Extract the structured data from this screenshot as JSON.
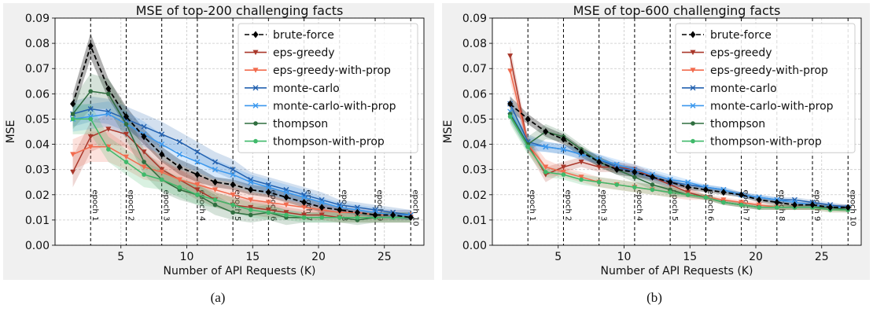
{
  "figure": {
    "captions": [
      "(a)",
      "(b)"
    ]
  },
  "colors": {
    "brute-force": "#000000",
    "eps-greedy": "#a9372a",
    "eps-greedy-with-prop": "#f26b4e",
    "monte-carlo": "#2462b0",
    "monte-carlo-with-prop": "#3b98ee",
    "thompson": "#2f6e3f",
    "thompson-with-prop": "#3fb96a",
    "panel_bg": "#f0f0f0"
  },
  "chart_data": [
    {
      "type": "line",
      "title": "MSE of top-200 challenging facts",
      "xlabel": "Number of API Requests (K)",
      "ylabel": "MSE",
      "xlim": [
        0,
        28
      ],
      "ylim": [
        0,
        0.09
      ],
      "xticks": [
        5,
        10,
        15,
        20,
        25
      ],
      "yticks": [
        0.0,
        0.01,
        0.02,
        0.03,
        0.04,
        0.05,
        0.06,
        0.07,
        0.08,
        0.09
      ],
      "grid": true,
      "legend_position": "top-right",
      "epochs": {
        "x": [
          2.7,
          5.4,
          8.1,
          10.8,
          13.5,
          16.2,
          18.9,
          21.6,
          24.3,
          27.0
        ],
        "labels": [
          "epoch 1",
          "epoch 2",
          "epoch 3",
          "epoch 4",
          "epoch 5",
          "epoch 6",
          "epoch 7",
          "epoch 8",
          "epoch 9",
          "epoch 10"
        ]
      },
      "x": [
        1.35,
        2.7,
        4.05,
        5.4,
        6.75,
        8.1,
        9.45,
        10.8,
        12.15,
        13.5,
        14.85,
        16.2,
        17.55,
        18.9,
        20.25,
        21.6,
        22.95,
        24.3,
        25.65,
        27.0
      ],
      "series": [
        {
          "name": "brute-force",
          "marker": "diamond",
          "dash": true,
          "values": [
            0.056,
            0.079,
            0.062,
            0.051,
            0.043,
            0.036,
            0.031,
            0.028,
            0.025,
            0.024,
            0.022,
            0.021,
            0.019,
            0.017,
            0.015,
            0.014,
            0.013,
            0.012,
            0.012,
            0.011
          ],
          "band": [
            0.004,
            0.005,
            0.004,
            0.004,
            0.003,
            0.003,
            0.003,
            0.003,
            0.002,
            0.002,
            0.002,
            0.002,
            0.002,
            0.002,
            0.002,
            0.001,
            0.001,
            0.001,
            0.001,
            0.001
          ]
        },
        {
          "name": "eps-greedy",
          "marker": "tri_down",
          "values": [
            0.029,
            0.043,
            0.046,
            0.044,
            0.037,
            0.03,
            0.026,
            0.022,
            0.018,
            0.016,
            0.015,
            0.014,
            0.013,
            0.012,
            0.012,
            0.011,
            0.011,
            0.011,
            0.011,
            0.011
          ],
          "band": [
            0.006,
            0.006,
            0.006,
            0.005,
            0.005,
            0.004,
            0.004,
            0.004,
            0.003,
            0.003,
            0.003,
            0.003,
            0.002,
            0.002,
            0.002,
            0.002,
            0.002,
            0.002,
            0.002,
            0.002
          ]
        },
        {
          "name": "eps-greedy-with-prop",
          "marker": "tri_down",
          "values": [
            0.036,
            0.039,
            0.039,
            0.035,
            0.031,
            0.029,
            0.026,
            0.024,
            0.022,
            0.02,
            0.018,
            0.017,
            0.016,
            0.015,
            0.014,
            0.013,
            0.013,
            0.012,
            0.012,
            0.012
          ],
          "band": [
            0.006,
            0.006,
            0.006,
            0.005,
            0.005,
            0.004,
            0.004,
            0.004,
            0.003,
            0.003,
            0.003,
            0.003,
            0.002,
            0.002,
            0.002,
            0.002,
            0.002,
            0.002,
            0.002,
            0.002
          ]
        },
        {
          "name": "monte-carlo",
          "marker": "x",
          "values": [
            0.052,
            0.054,
            0.053,
            0.05,
            0.047,
            0.044,
            0.041,
            0.037,
            0.033,
            0.03,
            0.026,
            0.024,
            0.022,
            0.02,
            0.018,
            0.016,
            0.015,
            0.014,
            0.013,
            0.012
          ],
          "band": [
            0.005,
            0.005,
            0.005,
            0.005,
            0.005,
            0.005,
            0.004,
            0.004,
            0.004,
            0.004,
            0.003,
            0.003,
            0.003,
            0.003,
            0.003,
            0.002,
            0.002,
            0.002,
            0.002,
            0.002
          ]
        },
        {
          "name": "monte-carlo-with-prop",
          "marker": "x",
          "values": [
            0.05,
            0.051,
            0.052,
            0.048,
            0.044,
            0.04,
            0.036,
            0.033,
            0.03,
            0.028,
            0.025,
            0.023,
            0.021,
            0.019,
            0.017,
            0.015,
            0.014,
            0.013,
            0.012,
            0.012
          ],
          "band": [
            0.005,
            0.005,
            0.005,
            0.005,
            0.005,
            0.004,
            0.004,
            0.004,
            0.004,
            0.003,
            0.003,
            0.003,
            0.003,
            0.003,
            0.002,
            0.002,
            0.002,
            0.002,
            0.002,
            0.002
          ]
        },
        {
          "name": "thompson",
          "marker": "circle",
          "values": [
            0.052,
            0.061,
            0.06,
            0.048,
            0.033,
            0.026,
            0.022,
            0.02,
            0.016,
            0.013,
            0.012,
            0.013,
            0.011,
            0.011,
            0.011,
            0.011,
            0.01,
            0.011,
            0.011,
            0.011
          ],
          "band": [
            0.006,
            0.007,
            0.006,
            0.006,
            0.005,
            0.005,
            0.004,
            0.004,
            0.004,
            0.003,
            0.003,
            0.003,
            0.003,
            0.002,
            0.002,
            0.002,
            0.002,
            0.002,
            0.002,
            0.002
          ]
        },
        {
          "name": "thompson-with-prop",
          "marker": "circle",
          "values": [
            0.05,
            0.05,
            0.038,
            0.033,
            0.028,
            0.026,
            0.023,
            0.02,
            0.018,
            0.016,
            0.014,
            0.013,
            0.012,
            0.011,
            0.011,
            0.011,
            0.011,
            0.011,
            0.011,
            0.011
          ],
          "band": [
            0.006,
            0.006,
            0.005,
            0.005,
            0.005,
            0.004,
            0.004,
            0.004,
            0.003,
            0.003,
            0.003,
            0.003,
            0.002,
            0.002,
            0.002,
            0.002,
            0.002,
            0.002,
            0.002,
            0.002
          ]
        }
      ]
    },
    {
      "type": "line",
      "title": "MSE of top-600 challenging facts",
      "xlabel": "Number of API Requests (K)",
      "ylabel": "MSE",
      "xlim": [
        0,
        28
      ],
      "ylim": [
        0,
        0.09
      ],
      "xticks": [
        5,
        10,
        15,
        20,
        25
      ],
      "yticks": [
        0.0,
        0.01,
        0.02,
        0.03,
        0.04,
        0.05,
        0.06,
        0.07,
        0.08,
        0.09
      ],
      "grid": true,
      "legend_position": "top-right",
      "epochs": {
        "x": [
          2.7,
          5.4,
          8.1,
          10.8,
          13.5,
          16.2,
          18.9,
          21.6,
          24.3,
          27.0
        ],
        "labels": [
          "epoch 1",
          "epoch 2",
          "epoch 3",
          "epoch 4",
          "epoch 5",
          "epoch 6",
          "epoch 7",
          "epoch 8",
          "epoch 9",
          "epoch 10"
        ]
      },
      "x": [
        1.35,
        2.7,
        4.05,
        5.4,
        6.75,
        8.1,
        9.45,
        10.8,
        12.15,
        13.5,
        14.85,
        16.2,
        17.55,
        18.9,
        20.25,
        21.6,
        22.95,
        24.3,
        25.65,
        27.0
      ],
      "series": [
        {
          "name": "brute-force",
          "marker": "diamond",
          "dash": true,
          "values": [
            0.056,
            0.05,
            0.045,
            0.042,
            0.037,
            0.033,
            0.03,
            0.029,
            0.027,
            0.025,
            0.023,
            0.022,
            0.021,
            0.02,
            0.018,
            0.017,
            0.016,
            0.016,
            0.015,
            0.015
          ],
          "band": [
            0.003,
            0.002,
            0.002,
            0.002,
            0.002,
            0.002,
            0.002,
            0.002,
            0.001,
            0.001,
            0.001,
            0.001,
            0.001,
            0.001,
            0.001,
            0.001,
            0.001,
            0.001,
            0.001,
            0.001
          ]
        },
        {
          "name": "eps-greedy",
          "marker": "tri_down",
          "values": [
            0.075,
            0.04,
            0.028,
            0.031,
            0.033,
            0.031,
            0.031,
            0.03,
            0.027,
            0.024,
            0.021,
            0.019,
            0.017,
            0.016,
            0.015,
            0.015,
            0.015,
            0.015,
            0.015,
            0.015
          ],
          "band": [
            0.004,
            0.003,
            0.003,
            0.002,
            0.002,
            0.002,
            0.002,
            0.002,
            0.002,
            0.002,
            0.002,
            0.001,
            0.001,
            0.001,
            0.001,
            0.001,
            0.001,
            0.001,
            0.001,
            0.001
          ]
        },
        {
          "name": "eps-greedy-with-prop",
          "marker": "tri_down",
          "values": [
            0.069,
            0.04,
            0.031,
            0.029,
            0.027,
            0.025,
            0.024,
            0.023,
            0.022,
            0.021,
            0.02,
            0.019,
            0.018,
            0.017,
            0.016,
            0.015,
            0.015,
            0.015,
            0.014,
            0.014
          ],
          "band": [
            0.004,
            0.003,
            0.003,
            0.002,
            0.002,
            0.002,
            0.002,
            0.002,
            0.002,
            0.002,
            0.002,
            0.001,
            0.001,
            0.001,
            0.001,
            0.001,
            0.001,
            0.001,
            0.001,
            0.001
          ]
        },
        {
          "name": "monte-carlo",
          "marker": "x",
          "values": [
            0.056,
            0.041,
            0.039,
            0.038,
            0.036,
            0.034,
            0.031,
            0.029,
            0.027,
            0.025,
            0.024,
            0.023,
            0.022,
            0.02,
            0.019,
            0.018,
            0.018,
            0.017,
            0.016,
            0.015
          ],
          "band": [
            0.003,
            0.003,
            0.002,
            0.002,
            0.002,
            0.002,
            0.002,
            0.002,
            0.002,
            0.002,
            0.001,
            0.001,
            0.001,
            0.001,
            0.001,
            0.001,
            0.001,
            0.001,
            0.001,
            0.001
          ]
        },
        {
          "name": "monte-carlo-with-prop",
          "marker": "x",
          "values": [
            0.053,
            0.04,
            0.039,
            0.038,
            0.036,
            0.034,
            0.032,
            0.03,
            0.028,
            0.026,
            0.025,
            0.023,
            0.022,
            0.02,
            0.019,
            0.018,
            0.017,
            0.016,
            0.015,
            0.015
          ],
          "band": [
            0.003,
            0.003,
            0.002,
            0.002,
            0.002,
            0.002,
            0.002,
            0.002,
            0.002,
            0.002,
            0.001,
            0.001,
            0.001,
            0.001,
            0.001,
            0.001,
            0.001,
            0.001,
            0.001,
            0.001
          ]
        },
        {
          "name": "thompson",
          "marker": "circle",
          "values": [
            0.052,
            0.04,
            0.045,
            0.043,
            0.038,
            0.033,
            0.03,
            0.027,
            0.024,
            0.022,
            0.02,
            0.019,
            0.017,
            0.016,
            0.015,
            0.015,
            0.015,
            0.015,
            0.015,
            0.014
          ],
          "band": [
            0.003,
            0.003,
            0.003,
            0.002,
            0.002,
            0.002,
            0.002,
            0.002,
            0.002,
            0.002,
            0.001,
            0.001,
            0.001,
            0.001,
            0.001,
            0.001,
            0.001,
            0.001,
            0.001,
            0.001
          ]
        },
        {
          "name": "thompson-with-prop",
          "marker": "circle",
          "values": [
            0.051,
            0.039,
            0.029,
            0.028,
            0.026,
            0.025,
            0.024,
            0.023,
            0.022,
            0.021,
            0.02,
            0.019,
            0.017,
            0.016,
            0.015,
            0.015,
            0.015,
            0.015,
            0.014,
            0.014
          ],
          "band": [
            0.003,
            0.003,
            0.002,
            0.002,
            0.002,
            0.002,
            0.002,
            0.002,
            0.002,
            0.002,
            0.001,
            0.001,
            0.001,
            0.001,
            0.001,
            0.001,
            0.001,
            0.001,
            0.001,
            0.001
          ]
        }
      ]
    }
  ]
}
